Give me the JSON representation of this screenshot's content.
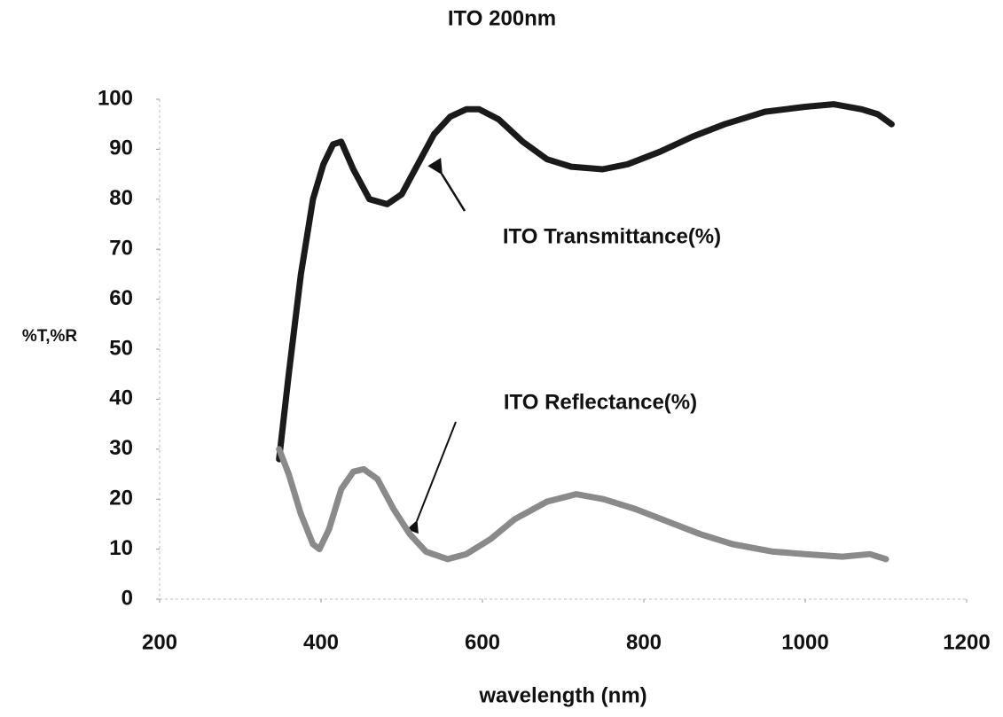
{
  "chart_data": {
    "type": "line",
    "title": "ITO 200nm",
    "x_label": "wavelength (nm)",
    "y_label": "%T,%R",
    "annotations": [
      "ITO Transmittance(%)",
      "ITO Reflectance(%)"
    ],
    "xlim": [
      200,
      1200
    ],
    "xticks": [
      200,
      400,
      600,
      800,
      1000,
      1200
    ],
    "ylim": [
      0,
      100
    ],
    "yticks": [
      0,
      10,
      20,
      30,
      40,
      50,
      60,
      70,
      80,
      90,
      100
    ],
    "grid": false,
    "series": [
      {
        "name": "ITO Transmittance(%)",
        "color": "#1a1a1a",
        "x": [
          348,
          360,
          375,
          390,
          403,
          415,
          425,
          440,
          460,
          482,
          500,
          520,
          540,
          560,
          580,
          596,
          620,
          650,
          680,
          710,
          749,
          780,
          820,
          860,
          900,
          950,
          1000,
          1035,
          1070,
          1090,
          1107
        ],
        "values": [
          28,
          45,
          65,
          80,
          87,
          91,
          91.5,
          86,
          80,
          79,
          81,
          87,
          93,
          96.5,
          98,
          98,
          96,
          91.5,
          88,
          86.5,
          86,
          87,
          89.5,
          92.5,
          95,
          97.5,
          98.5,
          99,
          98,
          97,
          95
        ]
      },
      {
        "name": "ITO Reflectance(%)",
        "color": "#8a8a8a",
        "x": [
          348,
          360,
          375,
          390,
          398,
          410,
          425,
          440,
          453,
          470,
          490,
          510,
          530,
          557,
          580,
          610,
          640,
          680,
          716,
          750,
          790,
          830,
          870,
          910,
          960,
          1000,
          1046,
          1080,
          1100
        ],
        "values": [
          30,
          25,
          17,
          11,
          10,
          14,
          22,
          25.5,
          26,
          24,
          18,
          13,
          9.5,
          8,
          9,
          12,
          16,
          19.5,
          21,
          20,
          18,
          15.5,
          13,
          11,
          9.5,
          9,
          8.5,
          9,
          8
        ]
      }
    ]
  }
}
